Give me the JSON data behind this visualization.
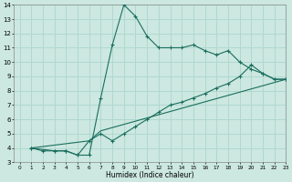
{
  "xlabel": "Humidex (Indice chaleur)",
  "bg_color": "#cce8e0",
  "grid_color": "#b0d8cf",
  "line_color": "#1a6e5e",
  "line1_x": [
    1,
    2,
    3,
    4,
    5,
    6,
    7,
    8,
    9,
    10,
    11,
    12,
    13,
    14,
    15,
    16,
    17,
    18,
    19,
    20,
    21,
    22,
    23
  ],
  "line1_y": [
    4.0,
    3.8,
    3.8,
    3.8,
    3.5,
    3.5,
    7.5,
    11.2,
    14.0,
    13.2,
    11.8,
    11.0,
    11.0,
    11.0,
    11.2,
    10.8,
    10.5,
    10.8,
    10.0,
    9.5,
    9.2,
    8.8,
    8.8
  ],
  "line2_x": [
    1,
    3,
    4,
    5,
    6,
    7,
    8,
    9,
    10,
    11,
    12,
    13,
    14,
    15,
    16,
    17,
    18,
    19,
    20,
    21,
    22,
    23
  ],
  "line2_y": [
    4.0,
    3.8,
    3.8,
    3.5,
    4.5,
    5.0,
    4.5,
    5.0,
    5.5,
    6.0,
    6.5,
    7.0,
    7.2,
    7.5,
    7.8,
    8.2,
    8.5,
    9.0,
    9.8,
    9.2,
    8.8,
    8.8
  ],
  "line3_x": [
    1,
    6,
    7,
    23
  ],
  "line3_y": [
    4.0,
    4.5,
    5.2,
    8.8
  ],
  "xlim": [
    -0.5,
    23
  ],
  "ylim": [
    3,
    14
  ],
  "xticks": [
    0,
    1,
    2,
    3,
    4,
    5,
    6,
    7,
    8,
    9,
    10,
    11,
    12,
    13,
    14,
    15,
    16,
    17,
    18,
    19,
    20,
    21,
    22,
    23
  ],
  "yticks": [
    3,
    4,
    5,
    6,
    7,
    8,
    9,
    10,
    11,
    12,
    13,
    14
  ]
}
